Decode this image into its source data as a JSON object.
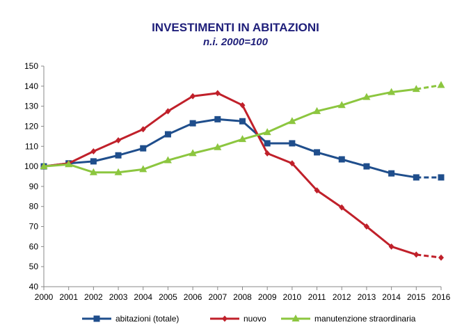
{
  "chart_data": {
    "type": "line",
    "title": "INVESTIMENTI IN ABITAZIONI",
    "subtitle": "n.i. 2000=100",
    "xlabel": "",
    "ylabel": "",
    "categories": [
      "2000",
      "2001",
      "2002",
      "2003",
      "2004",
      "2005",
      "2006",
      "2007",
      "2008",
      "2009",
      "2010",
      "2011",
      "2012",
      "2013",
      "2014",
      "2015",
      "2016"
    ],
    "ylim": [
      40,
      150
    ],
    "yticks": [
      40,
      50,
      60,
      70,
      80,
      90,
      100,
      110,
      120,
      130,
      140,
      150
    ],
    "grid": false,
    "legend_position": "bottom",
    "series": [
      {
        "name": "abitazioni (totale)",
        "color": "#1f4e8c",
        "marker": "square",
        "values": [
          100,
          101.5,
          102.5,
          105.5,
          109,
          116,
          121.5,
          123.5,
          122.5,
          111.5,
          111.5,
          107,
          103.5,
          100,
          96.5,
          94.5,
          94.5
        ],
        "dashed_from_index": 15
      },
      {
        "name": "nuovo",
        "color": "#c0202a",
        "marker": "diamond",
        "values": [
          100,
          101.5,
          107.5,
          113,
          118.5,
          127.5,
          135,
          136.5,
          130.5,
          106.5,
          101.5,
          88,
          79.5,
          70,
          60,
          56,
          54.5
        ],
        "dashed_from_index": 15
      },
      {
        "name": "manutenzione straordinaria",
        "color": "#8cc63f",
        "marker": "triangle",
        "values": [
          100,
          101,
          97,
          97,
          98.5,
          103,
          106.5,
          109.5,
          113.5,
          117,
          122.5,
          127.5,
          130.5,
          134.5,
          137,
          138.5,
          140.5
        ],
        "dashed_from_index": 15
      }
    ]
  }
}
